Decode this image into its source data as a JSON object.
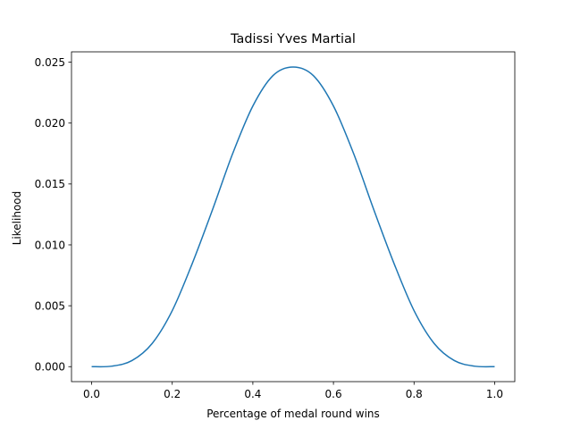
{
  "chart_data": {
    "type": "line",
    "title": "Tadissi Yves Martial",
    "xlabel": "Percentage of medal round wins",
    "ylabel": "Likelihood",
    "xlim": [
      -0.05,
      1.05
    ],
    "ylim": [
      -0.00123,
      0.02585
    ],
    "xticks": [
      0.0,
      0.2,
      0.4,
      0.6,
      0.8,
      1.0
    ],
    "xtick_labels": [
      "0.0",
      "0.2",
      "0.4",
      "0.6",
      "0.8",
      "1.0"
    ],
    "yticks": [
      0.0,
      0.005,
      0.01,
      0.015,
      0.02,
      0.025
    ],
    "ytick_labels": [
      "0.000",
      "0.005",
      "0.010",
      "0.015",
      "0.020",
      "0.025"
    ],
    "grid": false,
    "series": [
      {
        "color": "#1f77b4",
        "x": [
          0.0,
          0.05,
          0.1,
          0.15,
          0.2,
          0.25,
          0.3,
          0.35,
          0.4,
          0.45,
          0.5,
          0.55,
          0.6,
          0.65,
          0.7,
          0.75,
          0.8,
          0.85,
          0.9,
          0.95,
          1.0
        ],
        "y": [
          0.0,
          4e-05,
          0.0005,
          0.0019,
          0.0046,
          0.0085,
          0.0129,
          0.0175,
          0.0214,
          0.0239,
          0.0246,
          0.0239,
          0.0214,
          0.0175,
          0.0129,
          0.0085,
          0.0046,
          0.0019,
          0.0005,
          4e-05,
          0.0
        ]
      }
    ]
  }
}
